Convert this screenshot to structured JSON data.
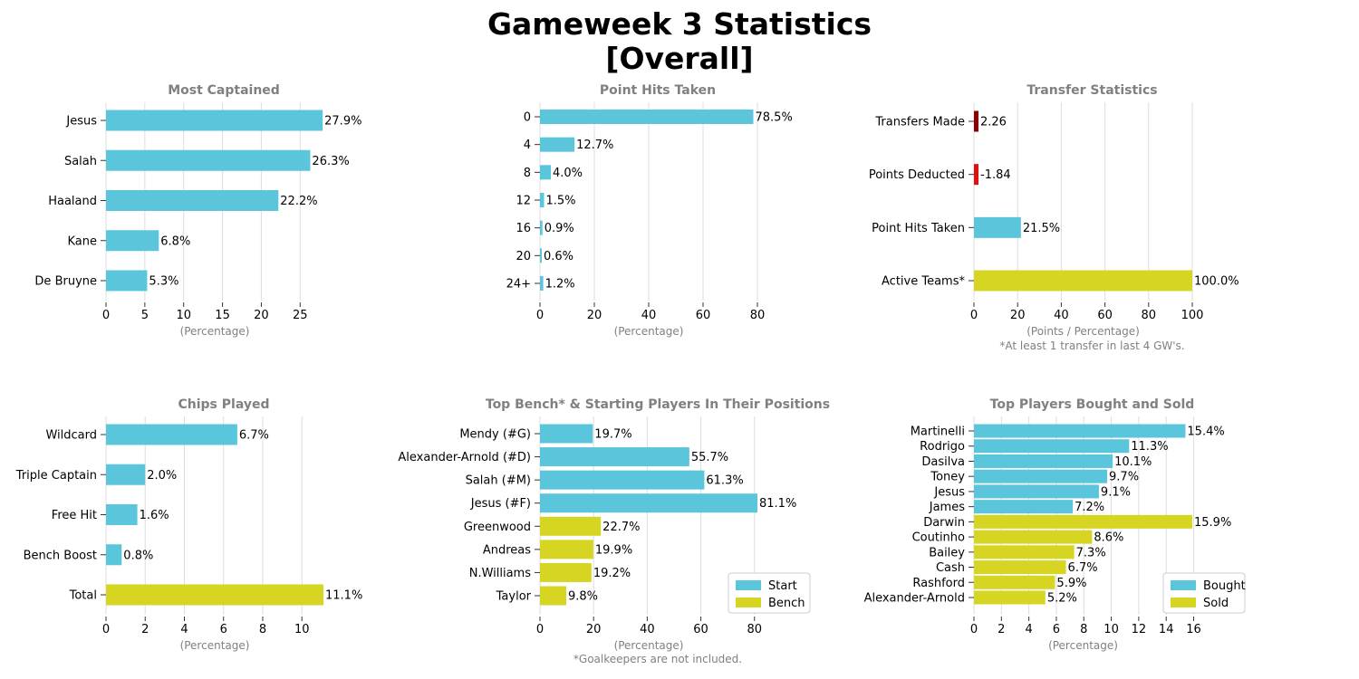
{
  "title_line1": "Gameweek 3 Statistics",
  "title_line2": "[Overall]",
  "colors": {
    "blue": "#5bc5dc",
    "yellow": "#d6d622",
    "dark_red": "#8b0000",
    "red": "#e01010",
    "grid": "#dddddd",
    "muted": "#808080"
  },
  "chart_data": [
    {
      "id": "most-captained",
      "type": "bar",
      "orientation": "horizontal",
      "title": "Most Captained",
      "xlabel": "(Percentage)",
      "categories": [
        "Jesus",
        "Salah",
        "Haaland",
        "Kane",
        "De Bruyne"
      ],
      "values": [
        27.9,
        26.3,
        22.2,
        6.8,
        5.3
      ],
      "labels": [
        "27.9%",
        "26.3%",
        "22.2%",
        "6.8%",
        "5.3%"
      ],
      "bar_colors": [
        "blue",
        "blue",
        "blue",
        "blue",
        "blue"
      ],
      "xticks": [
        0,
        5,
        10,
        15,
        20,
        25
      ],
      "xlim": [
        0,
        28
      ],
      "grid": true
    },
    {
      "id": "point-hits-taken",
      "type": "bar",
      "orientation": "horizontal",
      "title": "Point Hits Taken",
      "xlabel": "(Percentage)",
      "categories": [
        "0",
        "4",
        "8",
        "12",
        "16",
        "20",
        "24+"
      ],
      "values": [
        78.5,
        12.7,
        4.0,
        1.5,
        0.9,
        0.6,
        1.2
      ],
      "labels": [
        "78.5%",
        "12.7%",
        "4.0%",
        "1.5%",
        "0.9%",
        "0.6%",
        "1.2%"
      ],
      "bar_colors": [
        "blue",
        "blue",
        "blue",
        "blue",
        "blue",
        "blue",
        "blue"
      ],
      "xticks": [
        0,
        20,
        40,
        60,
        80
      ],
      "xlim": [
        0,
        80
      ],
      "grid": true
    },
    {
      "id": "transfer-statistics",
      "type": "bar",
      "orientation": "horizontal",
      "title": "Transfer Statistics",
      "xlabel": "(Points / Percentage)",
      "note": "*At least 1 transfer in last 4 GW's.",
      "categories": [
        "Transfers Made",
        "Points Deducted",
        "Point Hits Taken",
        "Active Teams*"
      ],
      "values": [
        2.26,
        -1.84,
        21.5,
        100.0
      ],
      "labels": [
        "2.26",
        "-1.84",
        "21.5%",
        "100.0%"
      ],
      "bar_colors": [
        "dark_red",
        "red",
        "blue",
        "yellow"
      ],
      "xticks": [
        0,
        20,
        40,
        60,
        80,
        100
      ],
      "xlim": [
        0,
        100
      ],
      "grid": true
    },
    {
      "id": "chips-played",
      "type": "bar",
      "orientation": "horizontal",
      "title": "Chips Played",
      "xlabel": "(Percentage)",
      "categories": [
        "Wildcard",
        "Triple Captain",
        "Free Hit",
        "Bench Boost",
        "Total"
      ],
      "values": [
        6.7,
        2.0,
        1.6,
        0.8,
        11.1
      ],
      "labels": [
        "6.7%",
        "2.0%",
        "1.6%",
        "0.8%",
        "11.1%"
      ],
      "bar_colors": [
        "blue",
        "blue",
        "blue",
        "blue",
        "yellow"
      ],
      "xticks": [
        0,
        2,
        4,
        6,
        8,
        10
      ],
      "xlim": [
        0,
        11.1
      ],
      "grid": true
    },
    {
      "id": "top-bench-starting",
      "type": "bar",
      "orientation": "horizontal",
      "title": "Top Bench* & Starting Players In Their Positions",
      "xlabel": "(Percentage)",
      "note": "*Goalkeepers are not included.",
      "categories": [
        "Mendy (#G)",
        "Alexander-Arnold (#D)",
        "Salah (#M)",
        "Jesus (#F)",
        "Greenwood",
        "Andreas",
        "N.Williams",
        "Taylor"
      ],
      "values": [
        19.7,
        55.7,
        61.3,
        81.1,
        22.7,
        19.9,
        19.2,
        9.8
      ],
      "labels": [
        "19.7%",
        "55.7%",
        "61.3%",
        "81.1%",
        "22.7%",
        "19.9%",
        "19.2%",
        "9.8%"
      ],
      "bar_colors": [
        "blue",
        "blue",
        "blue",
        "blue",
        "yellow",
        "yellow",
        "yellow",
        "yellow"
      ],
      "xticks": [
        0,
        20,
        40,
        60,
        80
      ],
      "xlim": [
        0,
        81.1
      ],
      "grid": true,
      "legend": {
        "placement": "bottom-right",
        "entries": [
          {
            "name": "Start",
            "color": "blue"
          },
          {
            "name": "Bench",
            "color": "yellow"
          }
        ]
      }
    },
    {
      "id": "top-bought-sold",
      "type": "bar",
      "orientation": "horizontal",
      "title": "Top Players Bought and Sold",
      "xlabel": "(Percentage)",
      "categories": [
        "Martinelli",
        "Rodrigo",
        "Dasilva",
        "Toney",
        "Jesus",
        "James",
        "Darwin",
        "Coutinho",
        "Bailey",
        "Cash",
        "Rashford",
        "Alexander-Arnold"
      ],
      "values": [
        15.4,
        11.3,
        10.1,
        9.7,
        9.1,
        7.2,
        15.9,
        8.6,
        7.3,
        6.7,
        5.9,
        5.2
      ],
      "labels": [
        "15.4%",
        "11.3%",
        "10.1%",
        "9.7%",
        "9.1%",
        "7.2%",
        "15.9%",
        "8.6%",
        "7.3%",
        "6.7%",
        "5.9%",
        "5.2%"
      ],
      "bar_colors": [
        "blue",
        "blue",
        "blue",
        "blue",
        "blue",
        "blue",
        "yellow",
        "yellow",
        "yellow",
        "yellow",
        "yellow",
        "yellow"
      ],
      "xticks": [
        0,
        2,
        4,
        6,
        8,
        10,
        12,
        14,
        16
      ],
      "xlim": [
        0,
        15.9
      ],
      "grid": true,
      "legend": {
        "placement": "bottom-right",
        "entries": [
          {
            "name": "Bought",
            "color": "blue"
          },
          {
            "name": "Sold",
            "color": "yellow"
          }
        ]
      }
    }
  ]
}
